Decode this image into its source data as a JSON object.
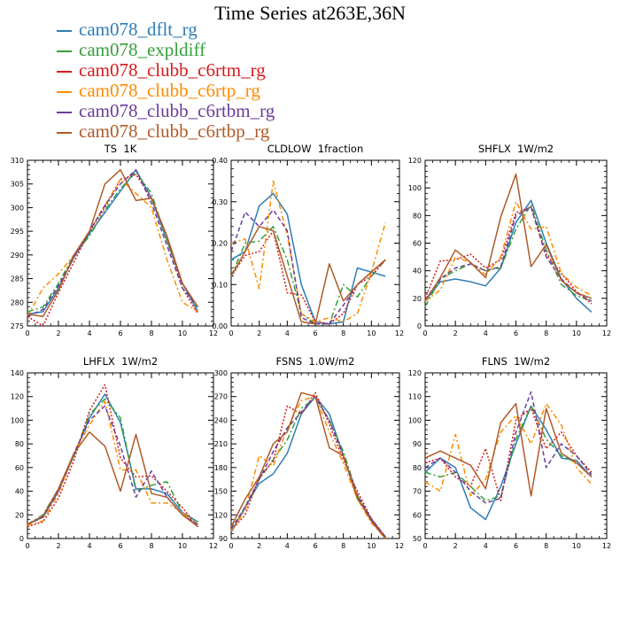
{
  "title": "Time Series at263E,36N",
  "series_styles": [
    {
      "name": "cam078_dflt_rg",
      "color": "#2e7eb6",
      "dash": ""
    },
    {
      "name": "cam078_expldiff",
      "color": "#35a03a",
      "dash": "7,3,2,3"
    },
    {
      "name": "cam078_clubb_c6rtm_rg",
      "color": "#d7191c",
      "dash": "2,2"
    },
    {
      "name": "cam078_clubb_c6rtp_rg",
      "color": "#ff8c00",
      "dash": "6,3,2,3"
    },
    {
      "name": "cam078_clubb_c6rtbm_rg",
      "color": "#6a3d9a",
      "dash": "5,3"
    },
    {
      "name": "cam078_clubb_c6rtbp_rg",
      "color": "#b05a28",
      "dash": ""
    }
  ],
  "chart_data": [
    {
      "type": "line",
      "title": "TS  1K",
      "x": [
        0,
        1,
        2,
        3,
        4,
        5,
        6,
        7,
        8,
        9,
        10,
        11
      ],
      "xlim": [
        0,
        12
      ],
      "xticks": [
        0,
        2,
        4,
        6,
        8,
        10,
        12
      ],
      "ylim": [
        275,
        310
      ],
      "yticks": [
        "275",
        "280",
        "285",
        "290",
        "295",
        "300",
        "305",
        "310"
      ],
      "series": [
        {
          "name": "cam078_dflt_rg",
          "values": [
            277.5,
            278,
            283,
            289.5,
            294.5,
            299,
            303.5,
            308,
            302,
            293,
            284,
            278
          ]
        },
        {
          "name": "cam078_expldiff",
          "values": [
            278,
            279,
            284,
            290,
            294,
            299.5,
            304,
            307.5,
            303,
            293,
            284,
            278.5
          ]
        },
        {
          "name": "cam078_clubb_c6rtm_rg",
          "values": [
            277,
            275,
            282,
            288.5,
            295,
            300,
            306,
            307,
            302,
            294,
            283,
            277.5
          ]
        },
        {
          "name": "cam078_clubb_c6rtp_rg",
          "values": [
            277,
            283,
            286,
            290,
            295,
            300.5,
            306,
            303,
            300,
            289,
            280,
            278
          ]
        },
        {
          "name": "cam078_clubb_c6rtbm_rg",
          "values": [
            277,
            278.5,
            283.5,
            289.5,
            295,
            300.5,
            305,
            308,
            301,
            292,
            283,
            279
          ]
        },
        {
          "name": "cam078_clubb_c6rtbp_rg",
          "values": [
            277.5,
            277,
            282.5,
            290,
            295,
            305,
            308,
            301.5,
            302,
            294,
            284,
            279
          ]
        }
      ]
    },
    {
      "type": "line",
      "title": "CLDLOW  1fraction",
      "x": [
        0,
        1,
        2,
        3,
        4,
        5,
        6,
        7,
        8,
        9,
        10,
        11
      ],
      "xlim": [
        0,
        12
      ],
      "xticks": [
        0,
        2,
        4,
        6,
        8,
        10,
        12
      ],
      "ylim": [
        0,
        0.4
      ],
      "yticks": [
        "0.00",
        "0.10",
        "0.20",
        "0.30",
        "0.40"
      ],
      "series": [
        {
          "name": "cam078_dflt_rg",
          "values": [
            0.16,
            0.18,
            0.29,
            0.32,
            0.27,
            0.1,
            0.01,
            0.005,
            0.01,
            0.14,
            0.13,
            0.12
          ]
        },
        {
          "name": "cam078_expldiff",
          "values": [
            0.12,
            0.2,
            0.205,
            0.24,
            0.16,
            0.03,
            0.005,
            0.005,
            0.1,
            0.07,
            0.12,
            0.16
          ]
        },
        {
          "name": "cam078_clubb_c6rtm_rg",
          "values": [
            0.12,
            0.17,
            0.18,
            0.23,
            0.08,
            0.075,
            0.01,
            0.005,
            0.03,
            0.1,
            0.12,
            0.16
          ]
        },
        {
          "name": "cam078_clubb_c6rtp_rg",
          "values": [
            0.2,
            0.21,
            0.09,
            0.35,
            0.22,
            0.03,
            0.01,
            0.02,
            0.01,
            0.03,
            0.13,
            0.25
          ]
        },
        {
          "name": "cam078_clubb_c6rtbm_rg",
          "values": [
            0.18,
            0.275,
            0.24,
            0.28,
            0.23,
            0.02,
            0.005,
            0.005,
            0.05,
            0.1,
            0.13,
            0.16
          ]
        },
        {
          "name": "cam078_clubb_c6rtbp_rg",
          "values": [
            0.12,
            0.18,
            0.24,
            0.23,
            0.12,
            0.01,
            0.005,
            0.15,
            0.06,
            0.1,
            0.13,
            0.16
          ]
        }
      ]
    },
    {
      "type": "line",
      "title": "SHFLX  1W/m2",
      "x": [
        0,
        1,
        2,
        3,
        4,
        5,
        6,
        7,
        8,
        9,
        10,
        11
      ],
      "xlim": [
        0,
        12
      ],
      "xticks": [
        0,
        2,
        4,
        6,
        8,
        10,
        12
      ],
      "ylim": [
        0,
        120
      ],
      "yticks": [
        "0",
        "20",
        "40",
        "60",
        "80",
        "100",
        "120"
      ],
      "series": [
        {
          "name": "cam078_dflt_rg",
          "values": [
            18,
            32,
            34,
            32,
            29,
            42,
            75,
            91,
            60,
            34,
            20,
            10
          ]
        },
        {
          "name": "cam078_expldiff",
          "values": [
            14,
            34,
            40,
            45,
            40,
            42,
            70,
            88,
            55,
            30,
            22,
            18
          ]
        },
        {
          "name": "cam078_clubb_c6rtm_rg",
          "values": [
            20,
            47,
            48,
            52,
            42,
            48,
            82,
            86,
            52,
            38,
            25,
            16
          ]
        },
        {
          "name": "cam078_clubb_c6rtp_rg",
          "values": [
            18,
            26,
            50,
            46,
            37,
            50,
            90,
            70,
            72,
            38,
            28,
            22
          ]
        },
        {
          "name": "cam078_clubb_c6rtbm_rg",
          "values": [
            19,
            34,
            42,
            45,
            40,
            43,
            80,
            86,
            50,
            34,
            24,
            18
          ]
        },
        {
          "name": "cam078_clubb_c6rtbp_rg",
          "values": [
            18,
            35,
            55,
            46,
            35,
            79,
            110,
            43,
            59,
            33,
            24,
            20
          ]
        }
      ]
    },
    {
      "type": "line",
      "title": "LHFLX  1W/m2",
      "x": [
        0,
        1,
        2,
        3,
        4,
        5,
        6,
        7,
        8,
        9,
        10,
        11
      ],
      "xlim": [
        0,
        12
      ],
      "xticks": [
        0,
        2,
        4,
        6,
        8,
        10,
        12
      ],
      "ylim": [
        0,
        140
      ],
      "yticks": [
        "0",
        "20",
        "40",
        "60",
        "80",
        "100",
        "120",
        "140"
      ],
      "series": [
        {
          "name": "cam078_dflt_rg",
          "values": [
            12,
            18,
            40,
            70,
            102,
            122,
            98,
            42,
            42,
            38,
            22,
            14
          ]
        },
        {
          "name": "cam078_expldiff",
          "values": [
            12,
            20,
            42,
            70,
            105,
            118,
            102,
            40,
            45,
            48,
            22,
            14
          ]
        },
        {
          "name": "cam078_clubb_c6rtm_rg",
          "values": [
            10,
            14,
            34,
            66,
            108,
            130,
            68,
            52,
            53,
            40,
            26,
            10
          ]
        },
        {
          "name": "cam078_clubb_c6rtp_rg",
          "values": [
            11,
            15,
            38,
            72,
            96,
            116,
            58,
            58,
            30,
            30,
            22,
            10
          ]
        },
        {
          "name": "cam078_clubb_c6rtbm_rg",
          "values": [
            12,
            18,
            40,
            72,
            100,
            112,
            78,
            35,
            57,
            35,
            20,
            12
          ]
        },
        {
          "name": "cam078_clubb_c6rtbp_rg",
          "values": [
            12,
            19,
            42,
            72,
            90,
            78,
            40,
            88,
            38,
            35,
            20,
            10
          ]
        }
      ]
    },
    {
      "type": "line",
      "title": "FSNS  1.0W/m2",
      "x": [
        0,
        1,
        2,
        3,
        4,
        5,
        6,
        7,
        8,
        9,
        10,
        11
      ],
      "xlim": [
        0,
        12
      ],
      "xticks": [
        0,
        2,
        4,
        6,
        8,
        10,
        12
      ],
      "ylim": [
        90,
        300
      ],
      "yticks": [
        "90",
        "120",
        "150",
        "180",
        "210",
        "240",
        "270",
        "300"
      ],
      "series": [
        {
          "name": "cam078_dflt_rg",
          "values": [
            98,
            130,
            160,
            172,
            198,
            248,
            270,
            248,
            195,
            140,
            115,
            90
          ]
        },
        {
          "name": "cam078_expldiff",
          "values": [
            100,
            128,
            165,
            190,
            215,
            255,
            268,
            240,
            200,
            145,
            112,
            90
          ]
        },
        {
          "name": "cam078_clubb_c6rtm_rg",
          "values": [
            100,
            120,
            168,
            188,
            258,
            248,
            275,
            235,
            190,
            150,
            115,
            92
          ]
        },
        {
          "name": "cam078_clubb_c6rtp_rg",
          "values": [
            100,
            125,
            195,
            182,
            230,
            265,
            270,
            225,
            185,
            140,
            110,
            90
          ]
        },
        {
          "name": "cam078_clubb_c6rtbm_rg",
          "values": [
            102,
            130,
            165,
            200,
            230,
            250,
            270,
            240,
            195,
            145,
            115,
            92
          ]
        },
        {
          "name": "cam078_clubb_c6rtbp_rg",
          "values": [
            105,
            140,
            168,
            210,
            225,
            275,
            270,
            205,
            195,
            142,
            112,
            90
          ]
        }
      ]
    },
    {
      "type": "line",
      "title": "FLNS  1W/m2",
      "x": [
        0,
        1,
        2,
        3,
        4,
        5,
        6,
        7,
        8,
        9,
        10,
        11
      ],
      "xlim": [
        0,
        12
      ],
      "xticks": [
        0,
        2,
        4,
        6,
        8,
        10,
        12
      ],
      "ylim": [
        50,
        120
      ],
      "yticks": [
        "50",
        "60",
        "70",
        "80",
        "90",
        "100",
        "110",
        "120"
      ],
      "series": [
        {
          "name": "cam078_dflt_rg",
          "values": [
            78,
            84,
            80,
            63,
            58,
            72,
            90,
            106,
            96,
            84,
            83,
            76
          ]
        },
        {
          "name": "cam078_expldiff",
          "values": [
            78,
            76,
            78,
            72,
            66,
            68,
            92,
            106,
            92,
            85,
            82,
            76
          ]
        },
        {
          "name": "cam078_clubb_c6rtm_rg",
          "values": [
            82,
            84,
            76,
            72,
            88,
            66,
            100,
            105,
            88,
            95,
            85,
            78
          ]
        },
        {
          "name": "cam078_clubb_c6rtp_rg",
          "values": [
            74,
            70,
            94,
            68,
            75,
            95,
            102,
            90,
            107,
            98,
            80,
            73
          ]
        },
        {
          "name": "cam078_clubb_c6rtbm_rg",
          "values": [
            80,
            84,
            78,
            70,
            65,
            67,
            95,
            112,
            80,
            90,
            85,
            77
          ]
        },
        {
          "name": "cam078_clubb_c6rtbp_rg",
          "values": [
            84,
            87,
            84,
            81,
            71,
            99,
            107,
            68,
            105,
            86,
            82,
            76
          ]
        }
      ]
    }
  ]
}
